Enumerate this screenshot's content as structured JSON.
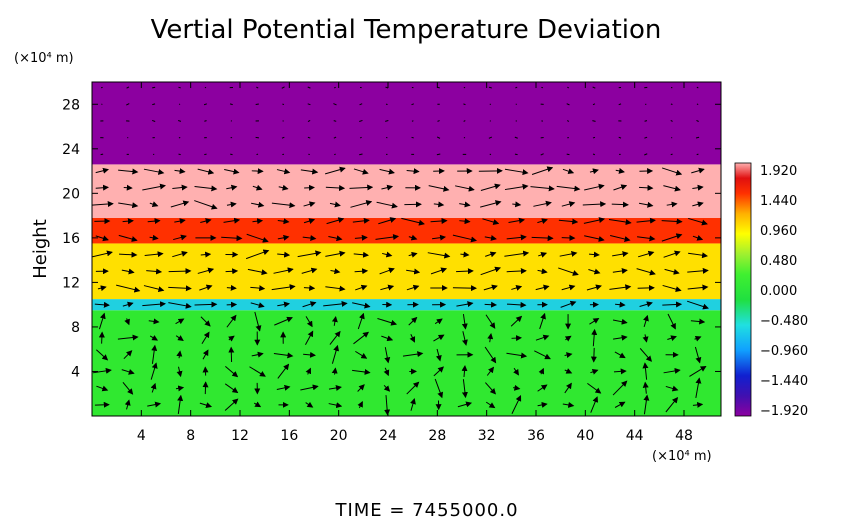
{
  "chart_data": {
    "type": "heatmap",
    "title": "Vertial Potential Temperature Deviation",
    "ylabel": "Height",
    "y_unit": "(×10⁴ m)",
    "x_unit": "(×10⁴ m)",
    "x_ticks": [
      4,
      8,
      12,
      16,
      20,
      24,
      28,
      32,
      36,
      40,
      44,
      48
    ],
    "y_ticks": [
      4,
      8,
      12,
      16,
      20,
      24,
      28
    ],
    "xlim": [
      0,
      51
    ],
    "ylim": [
      0,
      30
    ],
    "colorbar": {
      "range": [
        -1.92,
        1.92
      ],
      "tick_labels": [
        "1.920",
        "1.440",
        "0.960",
        "0.480",
        "0.000",
        "−0.480",
        "−0.960",
        "−1.440",
        "−1.920"
      ]
    },
    "layers": [
      {
        "y_from": 0,
        "y_to": 9.5,
        "value": 0.05
      },
      {
        "y_from": 9.5,
        "y_to": 10.5,
        "value": -0.7
      },
      {
        "y_from": 10.5,
        "y_to": 15.5,
        "value": 0.8
      },
      {
        "y_from": 15.5,
        "y_to": 17.8,
        "value": 1.5
      },
      {
        "y_from": 17.8,
        "y_to": 22.6,
        "value": 1.85
      },
      {
        "y_from": 22.6,
        "y_to": 30,
        "value": -1.92
      }
    ],
    "vector_field": true,
    "grid": false,
    "legend": "colorbar-right"
  },
  "footer": {
    "time_label": "TIME  =  7455000.0"
  }
}
